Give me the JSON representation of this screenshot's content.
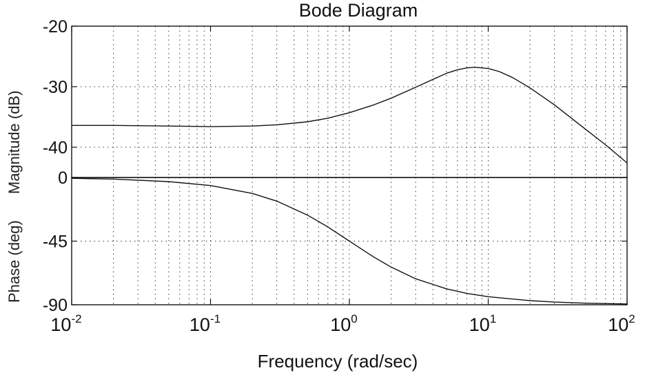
{
  "chart_data": [
    {
      "type": "line",
      "panel": "magnitude",
      "title": "Bode Diagram",
      "ylabel": "Magnitude (dB)",
      "xscale": "log",
      "xlim": [
        0.01,
        100
      ],
      "ylim": [
        -45,
        -20
      ],
      "y_ticks": [
        -20,
        -30,
        -40
      ],
      "grid": true,
      "series": [
        {
          "x": [
            0.01,
            0.02,
            0.05,
            0.1,
            0.2,
            0.3,
            0.5,
            0.7,
            1,
            1.5,
            2,
            3,
            4,
            5,
            6,
            7,
            8,
            10,
            12,
            15,
            20,
            30,
            50,
            70,
            100
          ],
          "values": [
            -36.4,
            -36.4,
            -36.5,
            -36.6,
            -36.5,
            -36.3,
            -35.8,
            -35.2,
            -34.3,
            -33.0,
            -31.9,
            -30.1,
            -28.8,
            -27.8,
            -27.2,
            -26.9,
            -26.8,
            -27.0,
            -27.5,
            -28.5,
            -30.2,
            -33.0,
            -37.0,
            -39.6,
            -42.6
          ]
        }
      ]
    },
    {
      "type": "line",
      "panel": "phase",
      "ylabel": "Phase (deg)",
      "xlabel": "Frequency  (rad/sec)",
      "xscale": "log",
      "xlim": [
        0.01,
        100
      ],
      "ylim": [
        -90,
        0
      ],
      "y_ticks": [
        0,
        -45,
        -90
      ],
      "x_ticks": [
        0.01,
        0.1,
        1,
        10,
        100
      ],
      "x_tick_labels": [
        [
          "10",
          "-2"
        ],
        [
          "10",
          "-1"
        ],
        [
          "10",
          "0"
        ],
        [
          "10",
          "1"
        ],
        [
          "10",
          "2"
        ]
      ],
      "grid": true,
      "series": [
        {
          "x": [
            0.01,
            0.02,
            0.05,
            0.1,
            0.2,
            0.3,
            0.5,
            0.7,
            1,
            1.5,
            2,
            3,
            5,
            7,
            10,
            20,
            30,
            50,
            100
          ],
          "values": [
            -0.6,
            -1.1,
            -2.9,
            -5.7,
            -11.3,
            -16.7,
            -26.6,
            -35.0,
            -45.0,
            -56.3,
            -63.4,
            -71.6,
            -78.7,
            -81.9,
            -84.3,
            -87.1,
            -88.1,
            -88.9,
            -89.4
          ]
        }
      ]
    }
  ]
}
